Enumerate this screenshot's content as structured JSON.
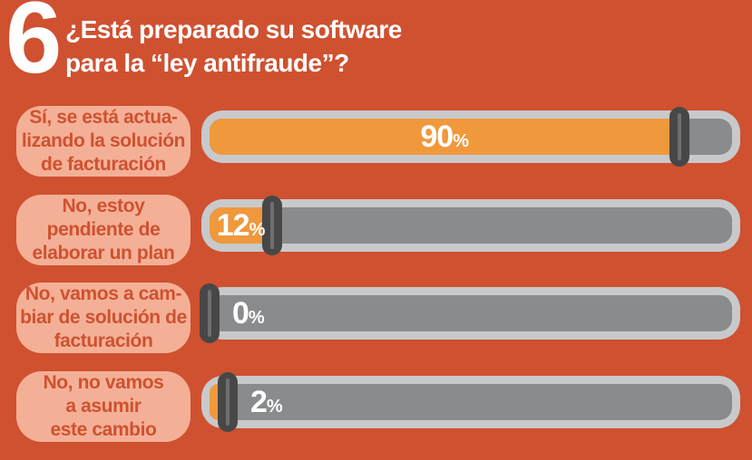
{
  "header": {
    "number": "6",
    "title_line1": "¿Está preparado su software",
    "title_line2": "para la “ley antifraude”?"
  },
  "unit": "%",
  "rows": [
    {
      "label": "Sí, se está actua-\nlizando la solución\nde facturación",
      "value": 90,
      "value_label": "90"
    },
    {
      "label": "No, estoy\npendiente de\nelaborar un plan",
      "value": 12,
      "value_label": "12"
    },
    {
      "label": "No, vamos a cam-\nbiar de solución de\nfacturación",
      "value": 0,
      "value_label": "0"
    },
    {
      "label": "No, no vamos\na asumir\neste cambio",
      "value": 2,
      "value_label": "2"
    }
  ],
  "colors": {
    "background": "#CF5130",
    "label_box": "#F4B096",
    "label_text": "#CF5130",
    "bar_outer": "#C8C9CB",
    "bar_track": "#8A8B8D",
    "bar_fill": "#F0983C",
    "handle": "#474747",
    "handle_stripe": "#6F6F6F",
    "text": "#FFFFFF"
  },
  "chart_data": {
    "type": "bar",
    "orientation": "horizontal",
    "question_number": "6",
    "title": "¿Está preparado su software para la “ley antifraude”?",
    "categories": [
      "Sí, se está actualizando la solución de facturación",
      "No, estoy pendiente de elaborar un plan",
      "No, vamos a cambiar de solución de facturación",
      "No, no vamos a asumir este cambio"
    ],
    "values": [
      90,
      12,
      0,
      2
    ],
    "unit": "%",
    "xlim": [
      0,
      100
    ],
    "legend": false,
    "grid": false,
    "style": "slider-style horizontal bars with drag-handle markers"
  }
}
